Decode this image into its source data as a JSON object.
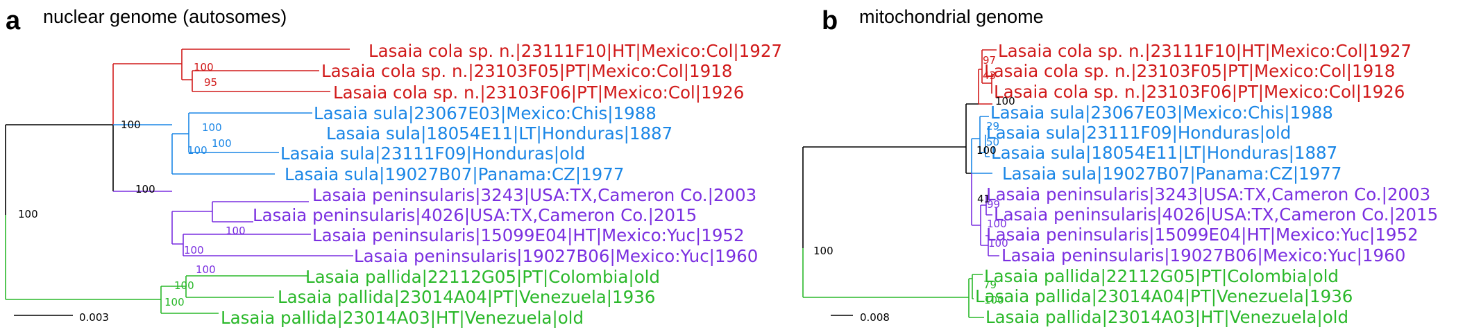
{
  "colors": {
    "red": "#d11a1a",
    "blue": "#1a86e6",
    "purple": "#7a2fe0",
    "green": "#2ab82a",
    "black": "#000000"
  },
  "panel_a": {
    "letter": "a",
    "title": "nuclear genome (autosomes)",
    "scale_label": "0.003",
    "leaves": [
      "Lasaia cola sp. n.|23111F10|HT|Mexico:Col|1927",
      "Lasaia cola sp. n.|23103F05|PT|Mexico:Col|1918",
      "Lasaia cola sp. n.|23103F06|PT|Mexico:Col|1926",
      "Lasaia sula|23067E03|Mexico:Chis|1988",
      "Lasaia sula|18054E11|LT|Honduras|1887",
      "Lasaia sula|23111F09|Honduras|old",
      "Lasaia sula|19027B07|Panama:CZ|1977",
      "Lasaia peninsularis|3243|USA:TX,Cameron Co.|2003",
      "Lasaia peninsularis|4026|USA:TX,Cameron Co.|2015",
      "Lasaia peninsularis|15099E04|HT|Mexico:Yuc|1952",
      "Lasaia peninsularis|19027B06|Mexico:Yuc|1960",
      "Lasaia pallida|22112G05|PT|Colombia|old",
      "Lasaia pallida|23014A04|PT|Venezuela|1936",
      "Lasaia pallida|23014A03|HT|Venezuela|old"
    ],
    "support": [
      "100",
      "95",
      "100",
      "100",
      "100",
      "100",
      "100",
      "100",
      "100",
      "100",
      "100"
    ]
  },
  "panel_b": {
    "letter": "b",
    "title": "mitochondrial genome",
    "scale_label": "0.008",
    "leaves": [
      "Lasaia cola sp. n.|23111F10|HT|Mexico:Col|1927",
      "Lasaia cola sp. n.|23103F05|PT|Mexico:Col|1918",
      "Lasaia cola sp. n.|23103F06|PT|Mexico:Col|1926",
      "Lasaia sula|23067E03|Mexico:Chis|1988",
      "Lasaia sula|23111F09|Honduras|old",
      "Lasaia sula|18054E11|LT|Honduras|1887",
      "Lasaia sula|19027B07|Panama:CZ|1977",
      "Lasaia peninsularis|3243|USA:TX,Cameron Co.|2003",
      "Lasaia peninsularis|4026|USA:TX,Cameron Co.|2015",
      "Lasaia peninsularis|15099E04|HT|Mexico:Yuc|1952",
      "Lasaia peninsularis|19027B06|Mexico:Yuc|1960",
      "Lasaia pallida|22112G05|PT|Colombia|old",
      "Lasaia pallida|23014A04|PT|Venezuela|1936",
      "Lasaia pallida|23014A03|HT|Venezuela|old"
    ],
    "support": [
      "97",
      "43",
      "100",
      "29",
      "50",
      "100",
      "41",
      "99",
      "100",
      "100",
      "100",
      "79",
      "100"
    ]
  }
}
